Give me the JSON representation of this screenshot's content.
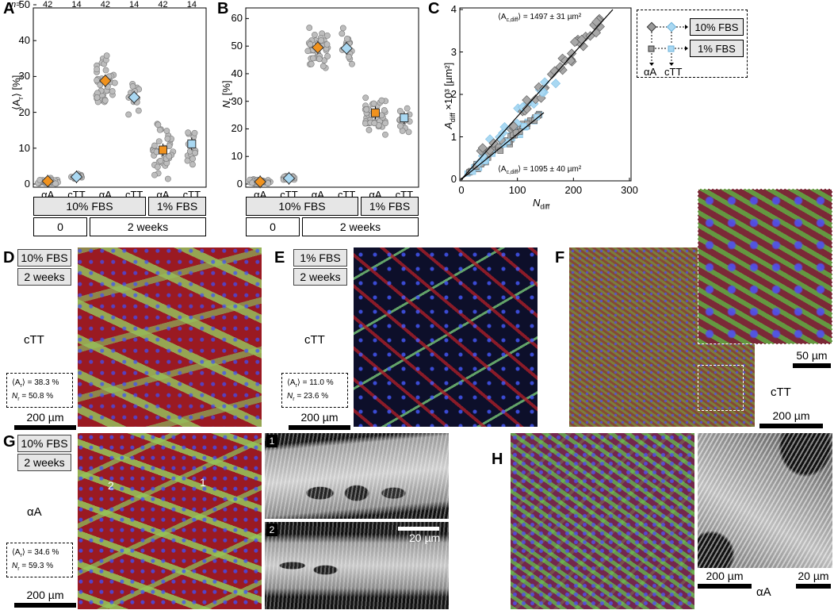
{
  "panels": {
    "A": {
      "label": "A",
      "n_prefix": "n=",
      "n_values": [
        "42",
        "14",
        "42",
        "14",
        "42",
        "14"
      ],
      "ylabel": "⟨A",
      "ylabel_sub": "r",
      "ylabel_tail": "⟩ [%]",
      "yticks": [
        "0",
        "10",
        "20",
        "30",
        "40",
        "50"
      ],
      "xticks": [
        "αA",
        "cTT",
        "αA",
        "cTT",
        "αA",
        "cTT"
      ]
    },
    "B": {
      "label": "B",
      "ylabel": "N",
      "ylabel_sub": "r",
      "ylabel_tail": " [%]",
      "yticks": [
        "0",
        "10",
        "20",
        "30",
        "40",
        "50",
        "60"
      ],
      "xticks": [
        "αA",
        "cTT",
        "αA",
        "cTT",
        "αA",
        "cTT"
      ]
    },
    "C": {
      "label": "C",
      "ann_top": "⟨A",
      "ann_top_sub": "c,diff",
      "ann_top_tail": "⟩ = 1497 ± 31 µm²",
      "ann_bottom": "⟨A",
      "ann_bottom_sub": "c,diff",
      "ann_bottom_tail": "⟩ = 1095 ± 40 µm²",
      "ylabel": "A",
      "ylabel_sub": "diff",
      "ylabel_tail": " ×10³ [µm²]",
      "xlabel": "N",
      "xlabel_sub": "diff",
      "yticks": [
        "0",
        "1",
        "2",
        "3",
        "4"
      ],
      "xticks": [
        "0",
        "100",
        "200",
        "300"
      ]
    },
    "legend": {
      "fbs10": "10% FBS",
      "fbs1": "1% FBS",
      "aa": "αA",
      "ctt": "cTT"
    },
    "condition_boxes": {
      "fbs10": "10% FBS",
      "fbs1": "1% FBS",
      "t0": "0",
      "t2": "2 weeks"
    },
    "D": {
      "label": "D",
      "fbs": "10% FBS",
      "time": "2 weeks",
      "type": "cTT",
      "ar": "⟨A",
      "ar_sub": "r",
      "ar_tail": "⟩ = 38.3 %",
      "nr": "N",
      "nr_sub": "r",
      "nr_tail": " = 50.8 %",
      "scale": "200 µm"
    },
    "E": {
      "label": "E",
      "fbs": "1% FBS",
      "time": "2 weeks",
      "type": "cTT",
      "ar": "⟨A",
      "ar_sub": "r",
      "ar_tail": "⟩ = 11.0 %",
      "nr": "N",
      "nr_sub": "r",
      "nr_tail": " = 23.6 %",
      "scale": "200 µm"
    },
    "F": {
      "label": "F",
      "type": "cTT",
      "scale_inset": "50 µm",
      "scale": "200 µm"
    },
    "G": {
      "label": "G",
      "fbs": "10% FBS",
      "time": "2 weeks",
      "type": "αA",
      "ar": "⟨A",
      "ar_sub": "r",
      "ar_tail": "⟩ = 34.6 %",
      "nr": "N",
      "nr_sub": "r",
      "nr_tail": " = 59.3 %",
      "scale": "200 µm",
      "inset1": "1",
      "inset2": "2",
      "inset_scale": "20 µm",
      "mark1": "1",
      "mark2": "2"
    },
    "H": {
      "label": "H",
      "type": "αA",
      "scale": "200 µm",
      "inset_scale": "20 µm"
    }
  },
  "colors": {
    "orange": "#f0921e",
    "blue": "#a9d8f2",
    "grey": "#bdbdbd",
    "box": "#e6e6e6"
  },
  "chart_data": [
    {
      "type": "scatter",
      "title": "",
      "ylabel": "⟨Ar⟩ [%]",
      "ylim": [
        0,
        50
      ],
      "categories": [
        "αA",
        "cTT",
        "αA",
        "cTT",
        "αA",
        "cTT"
      ],
      "groups": [
        [
          "10% FBS",
          "0"
        ],
        [
          "10% FBS",
          "0"
        ],
        [
          "10% FBS",
          "2 weeks"
        ],
        [
          "10% FBS",
          "2 weeks"
        ],
        [
          "1% FBS",
          "2 weeks"
        ],
        [
          "1% FBS",
          "2 weeks"
        ]
      ],
      "n": [
        42,
        14,
        42,
        14,
        42,
        14
      ],
      "means": [
        0.8,
        2.0,
        28.8,
        24.2,
        9.5,
        11.2
      ]
    },
    {
      "type": "scatter",
      "title": "",
      "ylabel": "Nr [%]",
      "ylim": [
        0,
        65
      ],
      "categories": [
        "αA",
        "cTT",
        "αA",
        "cTT",
        "αA",
        "cTT"
      ],
      "means": [
        0.8,
        2.1,
        49.5,
        49.2,
        25.8,
        24.0
      ]
    },
    {
      "type": "scatter",
      "title": "",
      "xlabel": "Ndiff",
      "ylabel": "Adiff ×10³ [µm²]",
      "xlim": [
        0,
        300
      ],
      "ylim": [
        0,
        4
      ],
      "series": [
        {
          "name": "10% FBS",
          "fit_slope_um2": 1497
        },
        {
          "name": "1% FBS",
          "fit_slope_um2": 1095
        }
      ]
    }
  ]
}
